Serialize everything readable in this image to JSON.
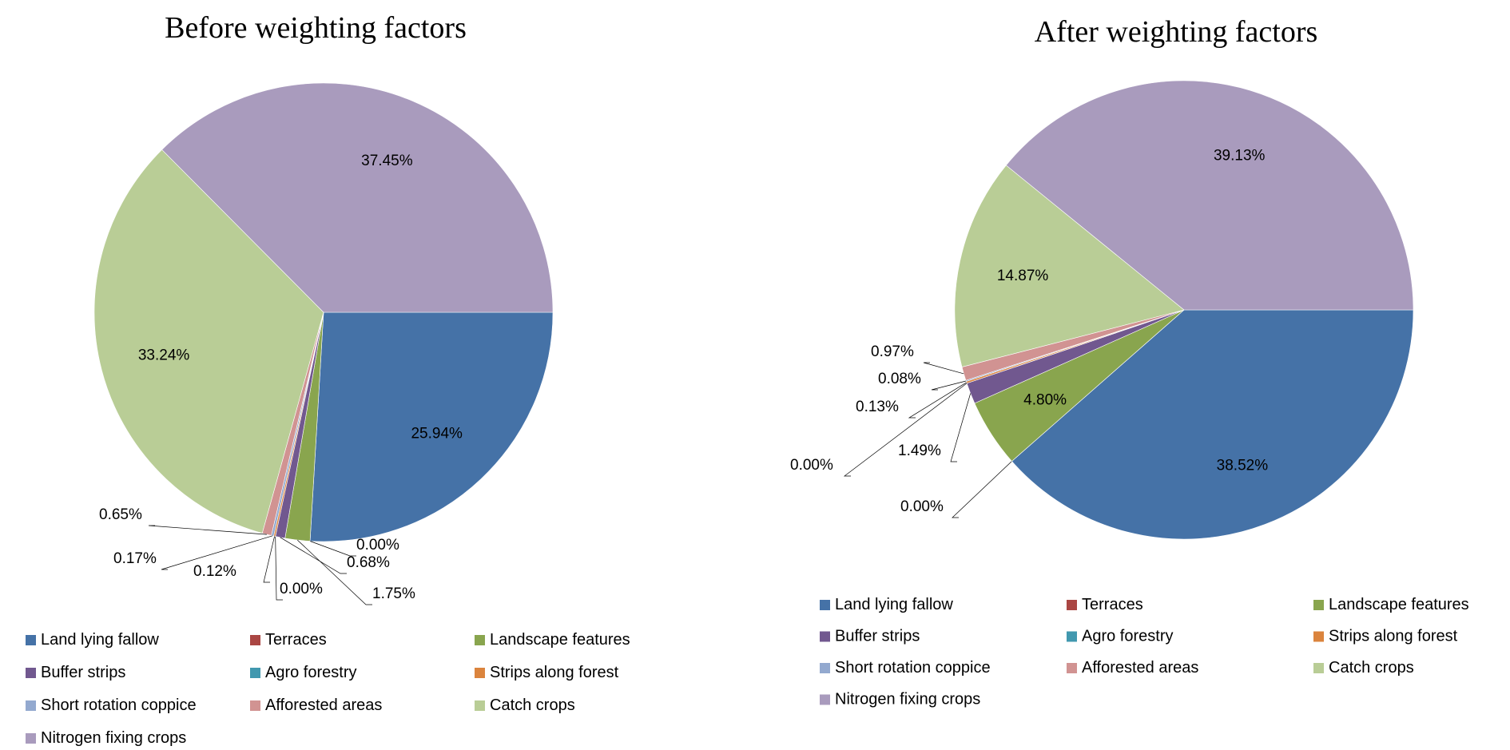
{
  "colors": {
    "Land lying fallow": "#4572A7",
    "Terraces": "#AA4643",
    "Landscape features": "#89A54E",
    "Buffer strips": "#71588F",
    "Agro forestry": "#4198AF",
    "Strips along forest": "#DB843D",
    "Short rotation coppice": "#93A9CF",
    "Afforested areas": "#D19392",
    "Catch crops": "#B9CD96",
    "Nitrogen fixing crops": "#A99BBD"
  },
  "chart_data": [
    {
      "type": "pie",
      "title": "Before weighting factors",
      "legend_position": "bottom",
      "categories": [
        "Land lying fallow",
        "Terraces",
        "Landscape features",
        "Buffer strips",
        "Agro forestry",
        "Strips along forest",
        "Short rotation coppice",
        "Afforested areas",
        "Catch crops",
        "Nitrogen fixing crops"
      ],
      "values": [
        25.94,
        0.0,
        1.75,
        0.68,
        0.0,
        0.12,
        0.17,
        0.65,
        33.24,
        37.45
      ],
      "labels": [
        "25.94%",
        "0.00%",
        "1.75%",
        "0.68%",
        "0.00%",
        "0.12%",
        "0.17%",
        "0.65%",
        "33.24%",
        "37.45%"
      ]
    },
    {
      "type": "pie",
      "title": "After weighting factors",
      "legend_position": "bottom",
      "categories": [
        "Land lying fallow",
        "Terraces",
        "Landscape features",
        "Buffer strips",
        "Agro forestry",
        "Strips along forest",
        "Short rotation coppice",
        "Afforested areas",
        "Catch crops",
        "Nitrogen fixing crops"
      ],
      "values": [
        38.52,
        0.0,
        4.8,
        1.49,
        0.0,
        0.13,
        0.08,
        0.97,
        14.87,
        39.13
      ],
      "labels": [
        "38.52%",
        "0.00%",
        "4.80%",
        "1.49%",
        "0.00%",
        "0.13%",
        "0.08%",
        "0.97%",
        "14.87%",
        "39.13%"
      ]
    }
  ]
}
